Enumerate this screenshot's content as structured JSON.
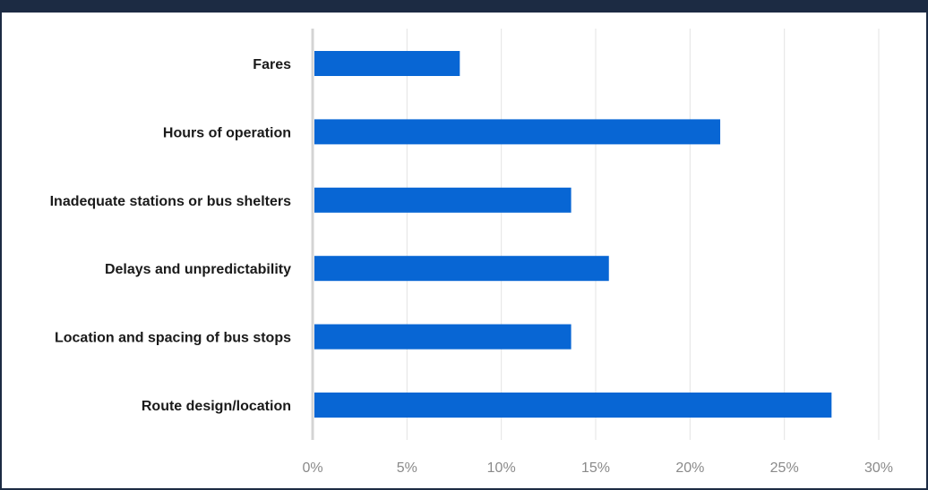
{
  "chart_data": {
    "type": "bar",
    "orientation": "horizontal",
    "categories": [
      "Fares",
      "Hours of operation",
      "Inadequate stations or bus shelters",
      "Delays and unpredictability",
      "Location and spacing of bus stops",
      "Route design/location"
    ],
    "values": [
      7.8,
      21.6,
      13.7,
      15.7,
      13.7,
      27.5
    ],
    "xlim": [
      0,
      30
    ],
    "x_ticks": [
      "0%",
      "5%",
      "10%",
      "15%",
      "20%",
      "25%",
      "30%"
    ],
    "grid": true,
    "bar_color": "#0866d4"
  }
}
